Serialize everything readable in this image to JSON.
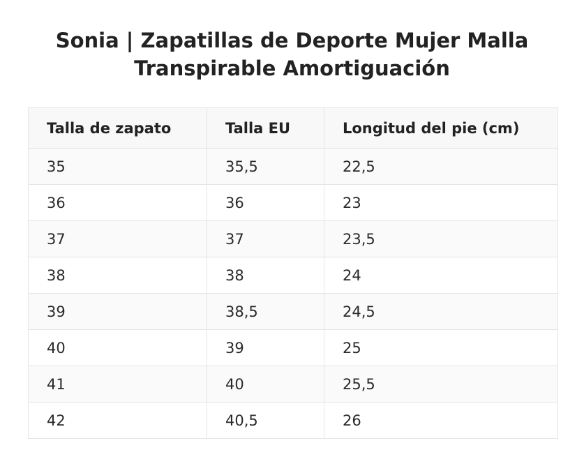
{
  "title": {
    "line1": "Sonia | Zapatillas de Deporte Mujer Malla",
    "line2": "Transpirable Amortiguación"
  },
  "table": {
    "headers": [
      "Talla de zapato",
      "Talla EU",
      "Longitud del pie (cm)"
    ],
    "rows": [
      [
        "35",
        "35,5",
        "22,5"
      ],
      [
        "36",
        "36",
        "23"
      ],
      [
        "37",
        "37",
        "23,5"
      ],
      [
        "38",
        "38",
        "24"
      ],
      [
        "39",
        "38,5",
        "24,5"
      ],
      [
        "40",
        "39",
        "25"
      ],
      [
        "41",
        "40",
        "25,5"
      ],
      [
        "42",
        "40,5",
        "26"
      ]
    ]
  }
}
